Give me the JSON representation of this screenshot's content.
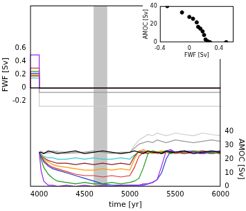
{
  "chart_data": [
    {
      "type": "line",
      "x_label": "time [yr]",
      "y_label": "FWF [Sv]",
      "y2_label": "AMOC [Sv]",
      "xlim": [
        3900,
        6000
      ],
      "xticks": [
        4000,
        4500,
        5000,
        5500,
        6000
      ],
      "ylim": [
        -1.5,
        1.25
      ],
      "yticks": [
        -0.2,
        0,
        0.2,
        0.4,
        0.6
      ],
      "y2lim": [
        0,
        132
      ],
      "y2ticks": [
        0,
        10,
        20,
        30,
        40
      ],
      "grid": false,
      "shaded_region": [
        4600,
        4750
      ],
      "x": [
        4000,
        4020,
        4050,
        4100,
        4150,
        4200,
        4300,
        4400,
        4500,
        4600,
        4700,
        4800,
        4900,
        5000,
        5050,
        5100,
        5150,
        5200,
        5250,
        5300,
        5350,
        5400,
        5450,
        5500,
        5600,
        5700,
        5800,
        5900,
        6000
      ],
      "series": [
        {
          "color": "#000000",
          "axis": "y",
          "line_style": "step",
          "x": [
            3900,
            4000,
            5000,
            6000
          ],
          "values": [
            0,
            0,
            0,
            0
          ]
        },
        {
          "color": "#a020f0",
          "axis": "y",
          "line_style": "step",
          "x": [
            3900,
            4000,
            5000,
            6000
          ],
          "values": [
            0,
            0.5,
            0,
            0
          ]
        },
        {
          "color": "#e03030",
          "axis": "y",
          "line_style": "step",
          "x": [
            3900,
            4000,
            5000,
            6000
          ],
          "values": [
            0,
            0.3,
            0,
            0
          ]
        },
        {
          "color": "#1a9a1a",
          "axis": "y",
          "line_style": "step",
          "x": [
            3900,
            4000,
            5000,
            6000
          ],
          "values": [
            0,
            0.25,
            0,
            0
          ]
        },
        {
          "color": "#1f3fd0",
          "axis": "y",
          "line_style": "step",
          "x": [
            3900,
            4000,
            5000,
            6000
          ],
          "values": [
            0,
            0.22,
            0,
            0
          ]
        },
        {
          "color": "#ff9900",
          "axis": "y",
          "line_style": "step",
          "x": [
            3900,
            4000,
            5000,
            6000
          ],
          "values": [
            0,
            0.2,
            0,
            0
          ]
        },
        {
          "color": "#8b1a1a",
          "axis": "y",
          "line_style": "step",
          "x": [
            3900,
            4000,
            5000,
            6000
          ],
          "values": [
            0,
            0.18,
            0,
            0
          ]
        },
        {
          "color": "#33cccc",
          "axis": "y",
          "line_style": "step",
          "x": [
            3900,
            4000,
            5000,
            6000
          ],
          "values": [
            0,
            0.15,
            0,
            0
          ]
        },
        {
          "color": "#999999",
          "axis": "y",
          "line_style": "step",
          "x": [
            3900,
            4000,
            5000,
            6000
          ],
          "values": [
            0,
            0,
            -0.07,
            -0.07
          ]
        },
        {
          "color": "#cccccc",
          "axis": "y",
          "line_style": "step",
          "x": [
            3900,
            4000,
            5000,
            6000
          ],
          "values": [
            0,
            0,
            -0.28,
            -0.28
          ]
        },
        {
          "color": "#000000",
          "axis": "y2",
          "values": [
            25,
            25,
            24,
            26,
            25,
            24,
            25,
            26,
            24,
            25,
            26,
            25,
            24,
            25,
            26,
            25,
            24,
            26,
            25,
            25,
            24,
            26,
            25,
            25,
            26,
            24,
            25,
            26,
            25
          ]
        },
        {
          "color": "#a020f0",
          "axis": "y2",
          "values": [
            25,
            12,
            4,
            1,
            1,
            0,
            1,
            0,
            1,
            0,
            1,
            0,
            1,
            1,
            1,
            1,
            2,
            2,
            3,
            5,
            15,
            26,
            27,
            25,
            26,
            25,
            24,
            26,
            25
          ]
        },
        {
          "color": "#1a9a1a",
          "axis": "y2",
          "values": [
            25,
            20,
            14,
            9,
            6,
            4,
            3,
            2,
            3,
            2,
            2,
            3,
            2,
            3,
            4,
            6,
            14,
            24,
            26,
            25,
            25,
            26,
            24,
            25,
            25,
            26,
            25,
            24,
            25
          ]
        },
        {
          "color": "#1f3fd0",
          "axis": "y2",
          "values": [
            25,
            22,
            18,
            15,
            13,
            12,
            10,
            8,
            6,
            4,
            2,
            1,
            1,
            1,
            1,
            1,
            1,
            2,
            3,
            5,
            10,
            20,
            26,
            25,
            26,
            25,
            24,
            25,
            26
          ]
        },
        {
          "color": "#e03030",
          "axis": "y2",
          "values": [
            25,
            22,
            19,
            16,
            14,
            13,
            11,
            9,
            8,
            8,
            7,
            8,
            7,
            8,
            14,
            22,
            25,
            26,
            25,
            24,
            25,
            26,
            25,
            24,
            25,
            26,
            25,
            24,
            25
          ]
        },
        {
          "color": "#ff9900",
          "axis": "y2",
          "values": [
            25,
            23,
            20,
            18,
            16,
            15,
            14,
            13,
            12,
            12,
            13,
            12,
            13,
            12,
            20,
            26,
            27,
            25,
            24,
            25,
            26,
            25,
            24,
            25,
            26,
            25,
            24,
            25,
            25
          ]
        },
        {
          "color": "#8b1a1a",
          "axis": "y2",
          "values": [
            25,
            23,
            21,
            19,
            18,
            17,
            17,
            16,
            17,
            16,
            17,
            16,
            17,
            16,
            22,
            26,
            25,
            24,
            26,
            25,
            24,
            25,
            26,
            25,
            24,
            25,
            26,
            25,
            24
          ]
        },
        {
          "color": "#33cccc",
          "axis": "y2",
          "values": [
            25,
            24,
            22,
            21,
            21,
            20,
            20,
            21,
            20,
            21,
            20,
            20,
            21,
            20,
            23,
            25,
            26,
            25,
            24,
            25,
            26,
            25,
            24,
            25,
            26,
            25,
            24,
            25,
            25
          ]
        },
        {
          "color": "#999999",
          "axis": "y2",
          "values": [
            25,
            25,
            24,
            25,
            26,
            25,
            24,
            25,
            25,
            26,
            25,
            24,
            25,
            25,
            28,
            31,
            32,
            33,
            32,
            34,
            33,
            32,
            33,
            34,
            33,
            32,
            33,
            34,
            33
          ]
        },
        {
          "color": "#cccccc",
          "axis": "y2",
          "values": [
            25,
            26,
            25,
            24,
            25,
            26,
            25,
            24,
            25,
            25,
            26,
            25,
            24,
            25,
            30,
            34,
            36,
            38,
            37,
            39,
            38,
            37,
            38,
            39,
            38,
            37,
            39,
            38,
            37
          ]
        }
      ]
    },
    {
      "type": "scatter",
      "x_label": "FWF [Sv]",
      "y_label": "AMOC [Sv]",
      "xlim": [
        -0.4,
        0.6
      ],
      "xticks": [
        -0.4,
        0,
        0.4
      ],
      "ylim": [
        0,
        40
      ],
      "yticks": [
        0,
        20,
        40
      ],
      "grid": false,
      "color": "#000000",
      "marker": "circle",
      "x": [
        -0.3,
        -0.1,
        0,
        0.05,
        0.1,
        0.12,
        0.15,
        0.18,
        0.2,
        0.22,
        0.25,
        0.28,
        0.5
      ],
      "values": [
        40,
        33,
        28,
        26,
        22,
        17,
        15,
        12,
        8,
        3,
        1,
        0,
        0
      ]
    }
  ]
}
